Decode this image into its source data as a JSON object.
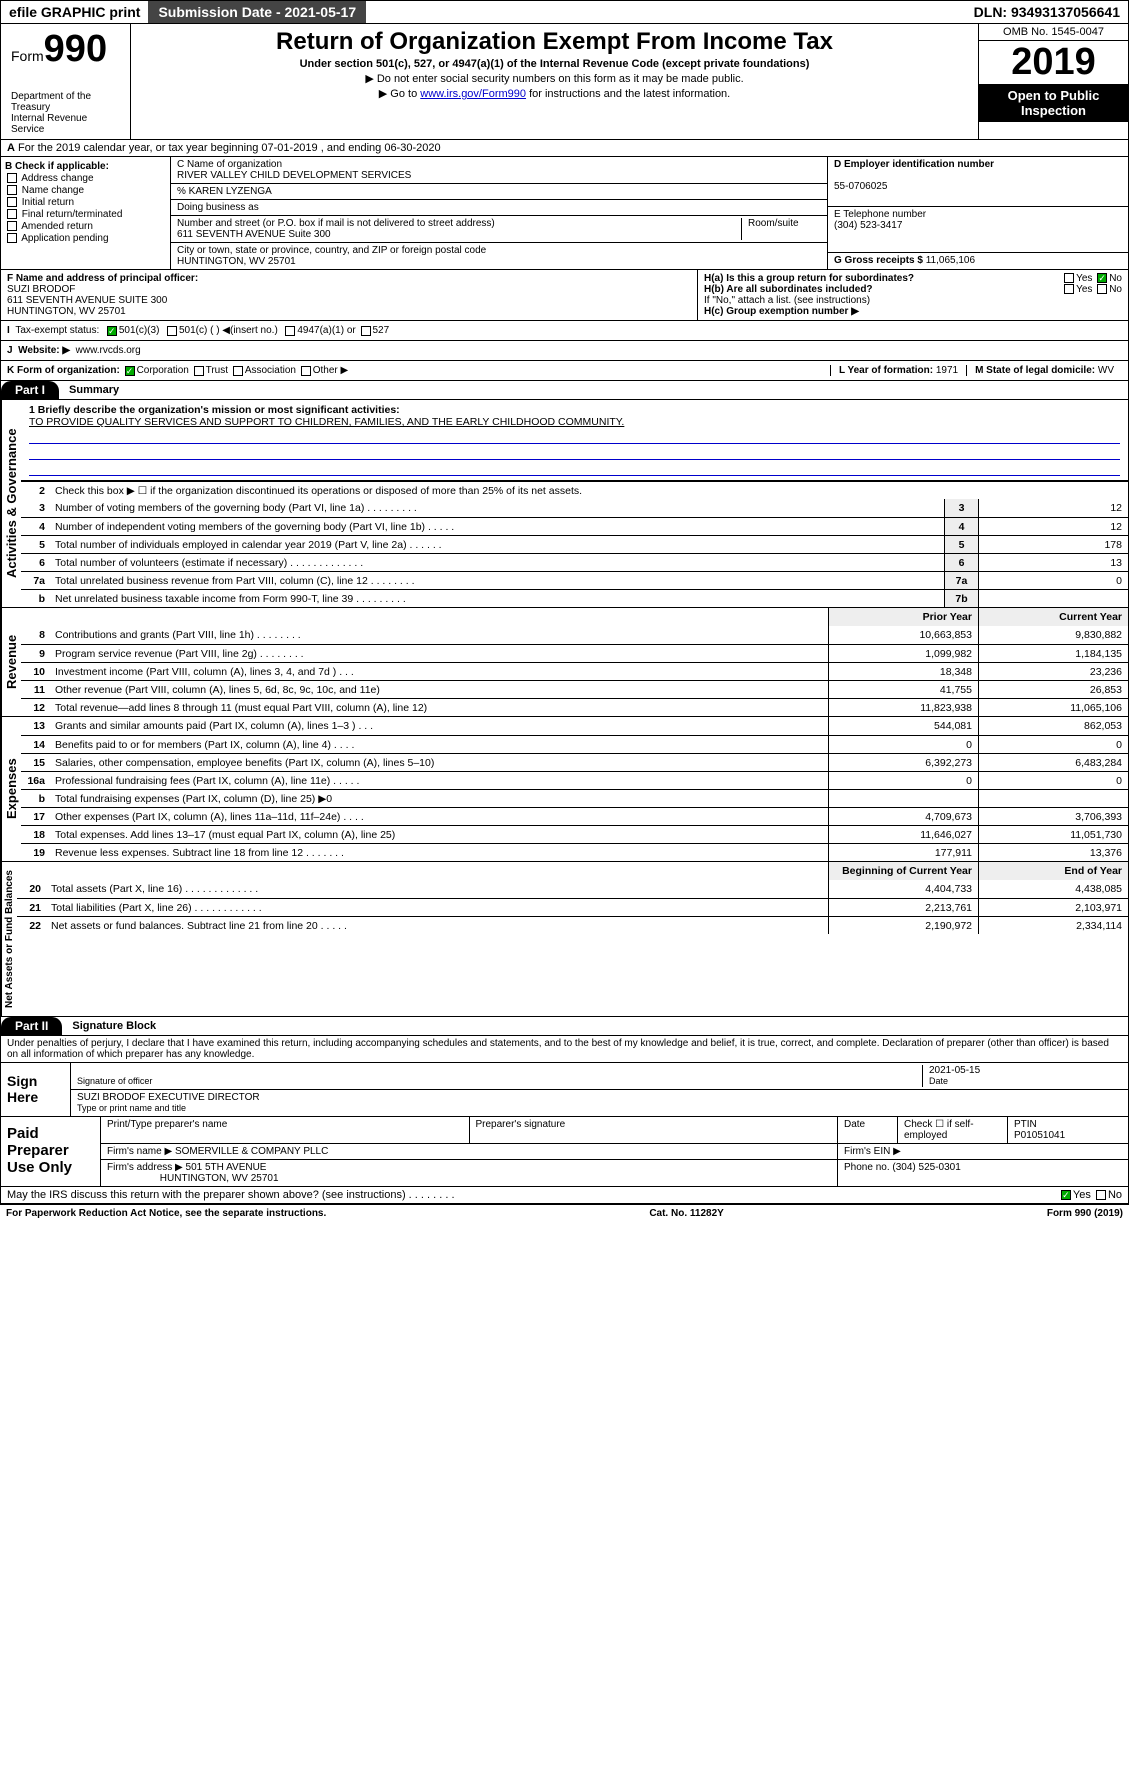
{
  "topbar": {
    "efile": "efile GRAPHIC print",
    "sub": "Submission Date - 2021-05-17",
    "dln": "DLN: 93493137056641"
  },
  "header": {
    "form_prefix": "Form",
    "form_num": "990",
    "dept": "Department of the Treasury\nInternal Revenue Service",
    "title": "Return of Organization Exempt From Income Tax",
    "sub1": "Under section 501(c), 527, or 4947(a)(1) of the Internal Revenue Code (except private foundations)",
    "sub2": "▶ Do not enter social security numbers on this form as it may be made public.",
    "sub3a": "▶ Go to ",
    "sub3link": "www.irs.gov/Form990",
    "sub3b": " for instructions and the latest information.",
    "omb": "OMB No. 1545-0047",
    "year": "2019",
    "open": "Open to Public Inspection"
  },
  "rowA": "For the 2019 calendar year, or tax year beginning 07-01-2019    , and ending 06-30-2020",
  "B": {
    "hdr": "B Check if applicable:",
    "opts": [
      "Address change",
      "Name change",
      "Initial return",
      "Final return/terminated",
      "Amended return",
      "Application pending"
    ]
  },
  "C": {
    "name_lbl": "C Name of organization",
    "name": "RIVER VALLEY CHILD DEVELOPMENT SERVICES",
    "care": "% KAREN LYZENGA",
    "dba": "Doing business as",
    "addr_lbl": "Number and street (or P.O. box if mail is not delivered to street address)",
    "addr": "611 SEVENTH AVENUE Suite 300",
    "room": "Room/suite",
    "city_lbl": "City or town, state or province, country, and ZIP or foreign postal code",
    "city": "HUNTINGTON, WV  25701"
  },
  "D": {
    "lbl": "D Employer identification number",
    "val": "55-0706025"
  },
  "E": {
    "lbl": "E Telephone number",
    "val": "(304) 523-3417"
  },
  "G": {
    "lbl": "G Gross receipts $",
    "val": "11,065,106"
  },
  "F": {
    "lbl": "F  Name and address of principal officer:",
    "name": "SUZI BRODOF",
    "addr1": "611 SEVENTH AVENUE SUITE 300",
    "addr2": "HUNTINGTON, WV  25701"
  },
  "H": {
    "a": "H(a)  Is this a group return for subordinates?",
    "b": "H(b)  Are all subordinates included?",
    "note": "If \"No,\" attach a list. (see instructions)",
    "c": "H(c)  Group exemption number ▶",
    "yes": "Yes",
    "no": "No"
  },
  "I": {
    "lbl": "Tax-exempt status:",
    "o1": "501(c)(3)",
    "o2": "501(c) (  ) ◀(insert no.)",
    "o3": "4947(a)(1) or",
    "o4": "527"
  },
  "J": {
    "lbl": "Website: ▶",
    "val": "www.rvcds.org"
  },
  "K": {
    "lbl": "K Form of organization:",
    "o1": "Corporation",
    "o2": "Trust",
    "o3": "Association",
    "o4": "Other ▶"
  },
  "L": {
    "lbl": "L Year of formation:",
    "val": "1971"
  },
  "M": {
    "lbl": "M State of legal domicile:",
    "val": "WV"
  },
  "part1": {
    "hdr": "Part I",
    "title": "Summary"
  },
  "summary": {
    "l1": "1  Briefly describe the organization's mission or most significant activities:",
    "mission": "TO PROVIDE QUALITY SERVICES AND SUPPORT TO CHILDREN, FAMILIES, AND THE EARLY CHILDHOOD COMMUNITY.",
    "l2": "Check this box ▶ ☐  if the organization discontinued its operations or disposed of more than 25% of its net assets.",
    "rows_small": [
      {
        "n": "3",
        "d": "Number of voting members of the governing body (Part VI, line 1a)  .    .    .    .    .    .    .    .    .",
        "box": "3",
        "v": "12"
      },
      {
        "n": "4",
        "d": "Number of independent voting members of the governing body (Part VI, line 1b)  .    .    .    .    .",
        "box": "4",
        "v": "12"
      },
      {
        "n": "5",
        "d": "Total number of individuals employed in calendar year 2019 (Part V, line 2a)  .    .    .    .    .    .",
        "box": "5",
        "v": "178"
      },
      {
        "n": "6",
        "d": "Total number of volunteers (estimate if necessary)  .    .    .    .    .    .    .    .    .    .    .    .    .",
        "box": "6",
        "v": "13"
      },
      {
        "n": "7a",
        "d": "Total unrelated business revenue from Part VIII, column (C), line 12  .    .    .    .    .    .    .    .",
        "box": "7a",
        "v": "0"
      },
      {
        "n": "b",
        "d": "Net unrelated business taxable income from Form 990-T, line 39  .    .    .    .    .    .    .    .    .",
        "box": "7b",
        "v": ""
      }
    ],
    "col_prior": "Prior Year",
    "col_curr": "Current Year",
    "rev": [
      {
        "n": "8",
        "d": "Contributions and grants (Part VIII, line 1h)  .    .    .    .    .    .    .    .",
        "p": "10,663,853",
        "c": "9,830,882"
      },
      {
        "n": "9",
        "d": "Program service revenue (Part VIII, line 2g)  .    .    .    .    .    .    .    .",
        "p": "1,099,982",
        "c": "1,184,135"
      },
      {
        "n": "10",
        "d": "Investment income (Part VIII, column (A), lines 3, 4, and 7d )  .    .    .",
        "p": "18,348",
        "c": "23,236"
      },
      {
        "n": "11",
        "d": "Other revenue (Part VIII, column (A), lines 5, 6d, 8c, 9c, 10c, and 11e)",
        "p": "41,755",
        "c": "26,853"
      },
      {
        "n": "12",
        "d": "Total revenue—add lines 8 through 11 (must equal Part VIII, column (A), line 12)",
        "p": "11,823,938",
        "c": "11,065,106"
      }
    ],
    "exp": [
      {
        "n": "13",
        "d": "Grants and similar amounts paid (Part IX, column (A), lines 1–3 )  .    .    .",
        "p": "544,081",
        "c": "862,053"
      },
      {
        "n": "14",
        "d": "Benefits paid to or for members (Part IX, column (A), line 4)  .    .    .    .",
        "p": "0",
        "c": "0"
      },
      {
        "n": "15",
        "d": "Salaries, other compensation, employee benefits (Part IX, column (A), lines 5–10)",
        "p": "6,392,273",
        "c": "6,483,284"
      },
      {
        "n": "16a",
        "d": "Professional fundraising fees (Part IX, column (A), line 11e)  .    .    .    .    .",
        "p": "0",
        "c": "0"
      },
      {
        "n": "b",
        "d": "Total fundraising expenses (Part IX, column (D), line 25) ▶0",
        "p": "",
        "c": ""
      },
      {
        "n": "17",
        "d": "Other expenses (Part IX, column (A), lines 11a–11d, 11f–24e)  .    .    .    .",
        "p": "4,709,673",
        "c": "3,706,393"
      },
      {
        "n": "18",
        "d": "Total expenses. Add lines 13–17 (must equal Part IX, column (A), line 25)",
        "p": "11,646,027",
        "c": "11,051,730"
      },
      {
        "n": "19",
        "d": "Revenue less expenses. Subtract line 18 from line 12  .    .    .    .    .    .    .",
        "p": "177,911",
        "c": "13,376"
      }
    ],
    "col_beg": "Beginning of Current Year",
    "col_end": "End of Year",
    "net": [
      {
        "n": "20",
        "d": "Total assets (Part X, line 16)  .    .    .    .    .    .    .    .    .    .    .    .    .",
        "p": "4,404,733",
        "c": "4,438,085"
      },
      {
        "n": "21",
        "d": "Total liabilities (Part X, line 26)  .    .    .    .    .    .    .    .    .    .    .    .",
        "p": "2,213,761",
        "c": "2,103,971"
      },
      {
        "n": "22",
        "d": "Net assets or fund balances. Subtract line 21 from line 20  .    .    .    .    .",
        "p": "2,190,972",
        "c": "2,334,114"
      }
    ]
  },
  "side": {
    "gov": "Activities & Governance",
    "rev": "Revenue",
    "exp": "Expenses",
    "net": "Net Assets or Fund Balances"
  },
  "part2": {
    "hdr": "Part II",
    "title": "Signature Block"
  },
  "perjury": "Under penalties of perjury, I declare that I have examined this return, including accompanying schedules and statements, and to the best of my knowledge and belief, it is true, correct, and complete. Declaration of preparer (other than officer) is based on all information of which preparer has any knowledge.",
  "sign": {
    "here": "Sign Here",
    "sig_off": "Signature of officer",
    "date": "Date",
    "date_val": "2021-05-15",
    "name": "SUZI BRODOF  EXECUTIVE DIRECTOR",
    "type": "Type or print name and title"
  },
  "prep": {
    "lbl": "Paid Preparer Use Only",
    "h1": "Print/Type preparer's name",
    "h2": "Preparer's signature",
    "h3": "Date",
    "h4": "Check ☐ if self-employed",
    "h5": "PTIN",
    "ptin": "P01051041",
    "firm_lbl": "Firm's name   ▶",
    "firm": "SOMERVILLE & COMPANY PLLC",
    "ein_lbl": "Firm's EIN ▶",
    "addr_lbl": "Firm's address ▶",
    "addr": "501 5TH AVENUE",
    "city": "HUNTINGTON, WV  25701",
    "phone_lbl": "Phone no.",
    "phone": "(304) 525-0301"
  },
  "discuss": "May the IRS discuss this return with the preparer shown above? (see instructions)    .    .    .    .    .    .    .    .",
  "footer": {
    "l": "For Paperwork Reduction Act Notice, see the separate instructions.",
    "m": "Cat. No. 11282Y",
    "r": "Form 990 (2019)"
  }
}
